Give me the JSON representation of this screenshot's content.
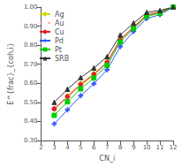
{
  "chart_data": {
    "type": "line",
    "xlabel": "CN_i",
    "ylabel": "E^{frac}_{coh,i}",
    "xlim": [
      2,
      12
    ],
    "ylim": [
      0.3,
      1.0
    ],
    "xticks": [
      2,
      3,
      4,
      5,
      6,
      7,
      8,
      9,
      10,
      11,
      12
    ],
    "yticks": [
      {
        "value": 0.3,
        "label": "0.30"
      },
      {
        "value": 0.4,
        "label": "0.40"
      },
      {
        "value": 0.5,
        "label": "0.50"
      },
      {
        "value": 0.6,
        "label": "0.60"
      },
      {
        "value": 0.7,
        "label": "0.70"
      },
      {
        "value": 0.8,
        "label": "0.80"
      },
      {
        "value": 0.9,
        "label": "0.90"
      },
      {
        "value": 1.0,
        "label": "1.00"
      }
    ],
    "grid": false,
    "legend": "upper left",
    "series": [
      {
        "name": "Ag",
        "color": "#ccdd00",
        "marker": "circle",
        "x": [
          3,
          4,
          5,
          6,
          7,
          8,
          9,
          10,
          11,
          12
        ],
        "values": [
          0.466,
          0.533,
          0.598,
          0.65,
          0.712,
          0.831,
          0.898,
          0.96,
          0.975,
          1.0
        ]
      },
      {
        "name": "Au",
        "color": "#ffaaaa",
        "marker": "open_circle",
        "x": [
          3,
          4,
          5,
          6,
          7,
          8,
          9,
          10,
          11,
          12
        ],
        "values": [
          0.462,
          0.526,
          0.589,
          0.643,
          0.706,
          0.825,
          0.892,
          0.955,
          0.971,
          1.0
        ]
      },
      {
        "name": "Cu",
        "color": "#dd2222",
        "marker": "circle",
        "x": [
          3,
          4,
          5,
          6,
          7,
          8,
          9,
          10,
          11,
          12
        ],
        "values": [
          0.466,
          0.53,
          0.594,
          0.647,
          0.71,
          0.829,
          0.895,
          0.958,
          0.974,
          1.0
        ]
      },
      {
        "name": "Pd",
        "color": "#3355ff",
        "marker": "plus",
        "x": [
          3,
          4,
          5,
          6,
          7,
          8,
          9,
          10,
          11,
          12
        ],
        "values": [
          0.387,
          0.461,
          0.535,
          0.598,
          0.671,
          0.793,
          0.872,
          0.94,
          0.96,
          1.0
        ]
      },
      {
        "name": "Pt",
        "color": "#00cc00",
        "marker": "square",
        "x": [
          3,
          4,
          5,
          6,
          7,
          8,
          9,
          10,
          11,
          12
        ],
        "values": [
          0.432,
          0.503,
          0.571,
          0.628,
          0.694,
          0.817,
          0.887,
          0.951,
          0.968,
          1.0
        ]
      },
      {
        "name": "SRB",
        "color": "#333333",
        "marker": "triangle",
        "x": [
          3,
          4,
          5,
          6,
          7,
          8,
          9,
          10,
          11,
          12
        ],
        "values": [
          0.5,
          0.569,
          0.63,
          0.68,
          0.74,
          0.854,
          0.916,
          0.972,
          0.982,
          1.0
        ]
      }
    ]
  }
}
